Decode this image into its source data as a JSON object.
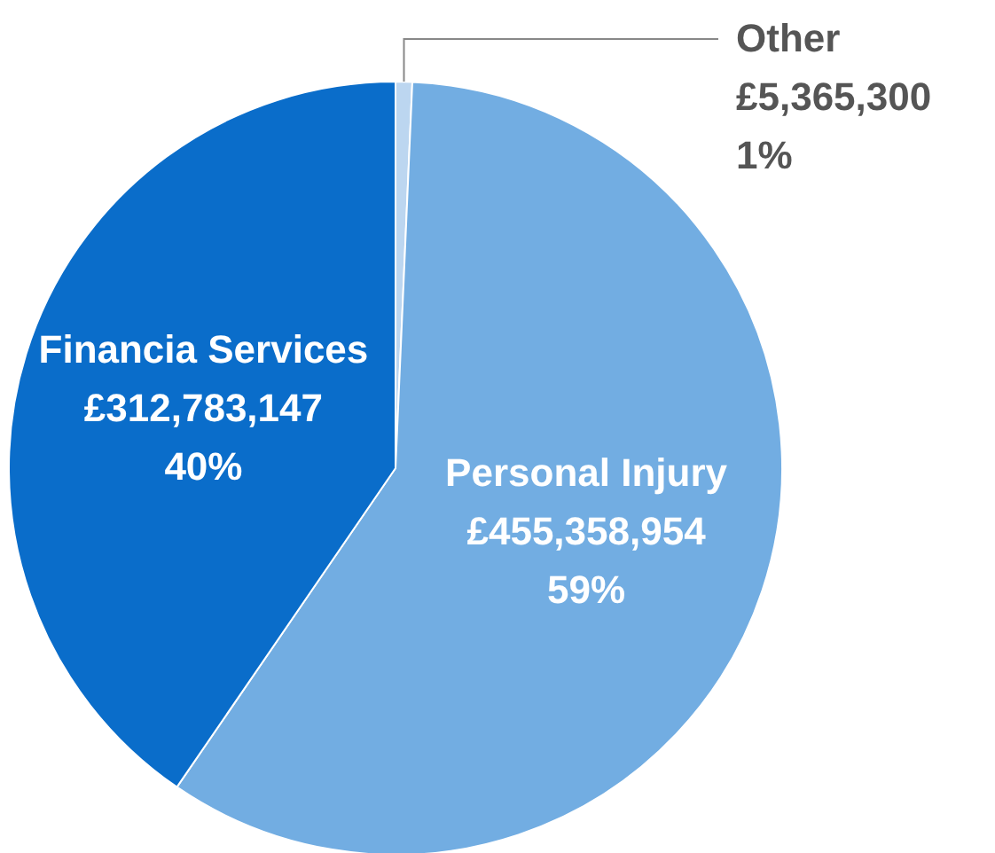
{
  "chart_data": {
    "type": "pie",
    "categories": [
      "Other",
      "Personal Injury",
      "Financia Services"
    ],
    "values": [
      5365300,
      455358954,
      312783147
    ],
    "colors": [
      "#bcd6f0",
      "#72ade2",
      "#0a6dca"
    ],
    "value_labels": [
      "£5,365,300\n1%",
      "£455,358,954\n59%",
      "£312,783,147\n40%"
    ]
  }
}
